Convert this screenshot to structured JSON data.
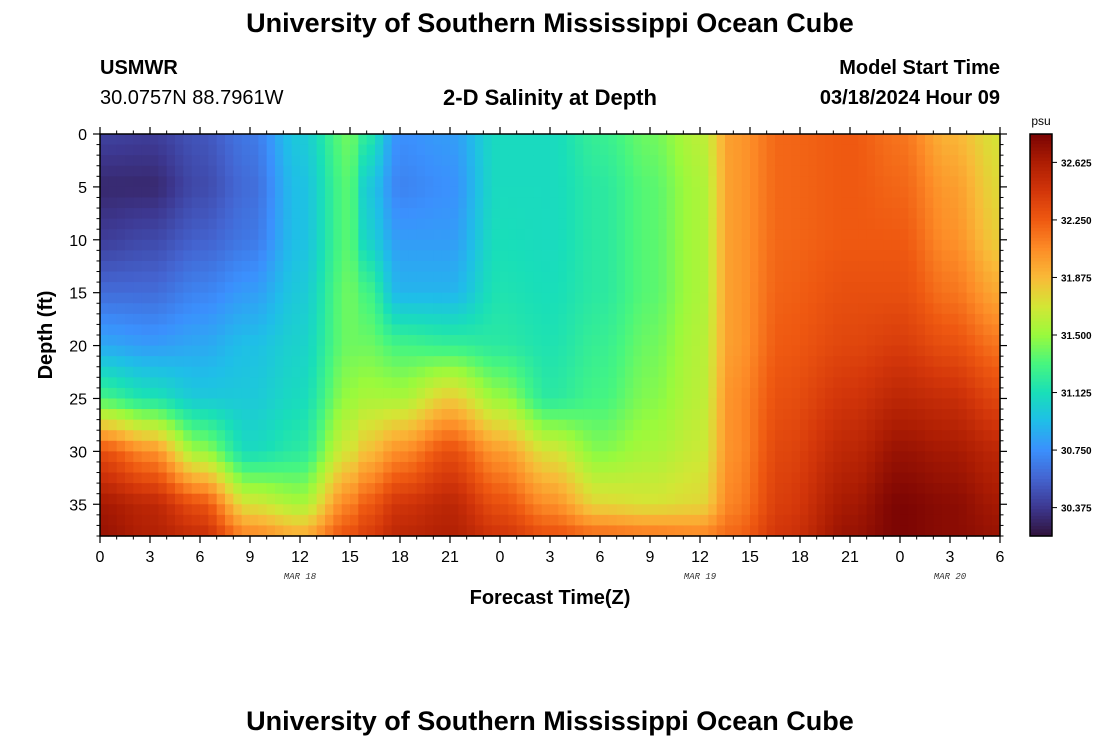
{
  "header": {
    "title": "University of Southern Mississippi Ocean Cube",
    "station_id": "USMWR",
    "coords": "30.0757N  88.7961W",
    "plot_title": "2-D Salinity at Depth",
    "model_start_label": "Model Start Time",
    "model_start_value": "03/18/2024 Hour 09"
  },
  "footer": {
    "title": "University of Southern Mississippi Ocean Cube"
  },
  "chart_data": {
    "type": "heatmap",
    "title": "2-D Salinity at Depth",
    "xlabel": "Forecast Time(Z)",
    "ylabel": "Depth (ft)",
    "x_tick_labels": [
      "0",
      "3",
      "6",
      "9",
      "12",
      "15",
      "18",
      "21",
      "0",
      "3",
      "6",
      "9",
      "12",
      "15",
      "18",
      "21",
      "0",
      "3",
      "6"
    ],
    "x_hours": [
      0,
      3,
      6,
      9,
      12,
      15,
      18,
      21,
      24,
      27,
      30,
      33,
      36,
      39,
      42,
      45,
      48,
      51,
      54
    ],
    "x_range_hours": [
      0,
      54
    ],
    "date_labels": [
      {
        "text": "MAR 18",
        "hour": 12
      },
      {
        "text": "MAR 19",
        "hour": 36
      },
      {
        "text": "MAR 20",
        "hour": 51
      }
    ],
    "y_ticks": [
      0,
      5,
      10,
      15,
      20,
      25,
      30,
      35
    ],
    "y_range": [
      0,
      38
    ],
    "y_inverted": true,
    "colorbar": {
      "unit": "psu",
      "vmin": 30.19,
      "vmax": 32.81,
      "ticks": [
        "32.625",
        "32.250",
        "31.875",
        "31.500",
        "31.125",
        "30.750",
        "30.375"
      ],
      "colors": [
        "#30123b",
        "#3d3891",
        "#4464d0",
        "#3b90fd",
        "#1fbee8",
        "#19dfb8",
        "#47f67f",
        "#9afa3c",
        "#d3e635",
        "#f9ba38",
        "#fd8c27",
        "#ef5911",
        "#d3360a",
        "#ad1d03",
        "#7a0403"
      ]
    },
    "depth_profiles_psu": {
      "depths_ft": [
        0,
        5,
        10,
        15,
        20,
        25,
        30,
        35,
        38
      ],
      "keyframes": [
        {
          "hour": 0,
          "values": [
            30.42,
            30.3,
            30.4,
            30.6,
            30.85,
            31.3,
            32.3,
            32.65,
            32.7
          ]
        },
        {
          "hour": 3,
          "values": [
            30.4,
            30.3,
            30.45,
            30.6,
            30.8,
            31.15,
            32.05,
            32.55,
            32.6
          ]
        },
        {
          "hour": 6,
          "values": [
            30.5,
            30.45,
            30.55,
            30.7,
            30.85,
            31.0,
            31.5,
            32.3,
            32.5
          ]
        },
        {
          "hour": 9,
          "values": [
            30.65,
            30.6,
            30.65,
            30.8,
            30.95,
            31.0,
            31.1,
            31.7,
            32.1
          ]
        },
        {
          "hour": 12,
          "values": [
            31.0,
            30.95,
            30.95,
            31.0,
            31.05,
            31.1,
            31.2,
            31.55,
            31.95
          ]
        },
        {
          "hour": 15,
          "values": [
            31.4,
            31.35,
            31.35,
            31.4,
            31.4,
            31.5,
            31.7,
            32.1,
            32.3
          ]
        },
        {
          "hour": 16,
          "values": [
            31.2,
            31.0,
            31.05,
            31.3,
            31.4,
            31.55,
            31.85,
            32.25,
            32.4
          ]
        },
        {
          "hour": 18,
          "values": [
            30.75,
            30.7,
            30.8,
            30.9,
            31.3,
            31.55,
            32.05,
            32.45,
            32.55
          ]
        },
        {
          "hour": 21,
          "values": [
            30.8,
            30.75,
            30.8,
            30.9,
            31.25,
            31.8,
            32.3,
            32.55,
            32.6
          ]
        },
        {
          "hour": 24,
          "values": [
            31.1,
            31.1,
            31.12,
            31.15,
            31.2,
            31.5,
            32.0,
            32.3,
            32.45
          ]
        },
        {
          "hour": 27,
          "values": [
            31.1,
            31.1,
            31.1,
            31.12,
            31.15,
            31.2,
            31.7,
            32.05,
            32.3
          ]
        },
        {
          "hour": 30,
          "values": [
            31.25,
            31.2,
            31.2,
            31.2,
            31.25,
            31.3,
            31.45,
            31.75,
            32.2
          ]
        },
        {
          "hour": 33,
          "values": [
            31.4,
            31.35,
            31.35,
            31.35,
            31.4,
            31.45,
            31.55,
            31.7,
            32.15
          ]
        },
        {
          "hour": 36,
          "values": [
            31.6,
            31.55,
            31.55,
            31.55,
            31.58,
            31.6,
            31.65,
            31.75,
            32.1
          ]
        },
        {
          "hour": 38,
          "values": [
            32.0,
            32.0,
            32.0,
            32.0,
            32.0,
            32.05,
            32.05,
            32.1,
            32.2
          ]
        },
        {
          "hour": 41,
          "values": [
            32.2,
            32.2,
            32.2,
            32.22,
            32.25,
            32.3,
            32.35,
            32.4,
            32.45
          ]
        },
        {
          "hour": 45,
          "values": [
            32.25,
            32.25,
            32.25,
            32.3,
            32.35,
            32.45,
            32.55,
            32.65,
            32.7
          ]
        },
        {
          "hour": 48,
          "values": [
            32.15,
            32.2,
            32.25,
            32.3,
            32.4,
            32.55,
            32.7,
            32.8,
            32.8
          ]
        },
        {
          "hour": 51,
          "values": [
            31.9,
            32.0,
            32.05,
            32.15,
            32.3,
            32.5,
            32.65,
            32.75,
            32.75
          ]
        },
        {
          "hour": 54,
          "values": [
            31.7,
            31.75,
            31.8,
            31.95,
            32.15,
            32.35,
            32.55,
            32.65,
            32.7
          ]
        }
      ]
    }
  }
}
